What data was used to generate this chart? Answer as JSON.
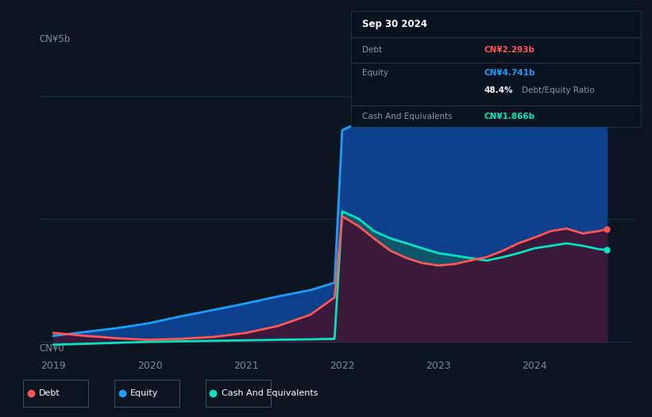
{
  "bg_color": "#0c1420",
  "plot_bg_color": "#0c1420",
  "grid_color": "#1e2d3d",
  "ylabel_text": "CN¥5b",
  "ylabel0_text": "CN¥0",
  "ylim": [
    -0.3,
    5.8
  ],
  "y_top": 5.0,
  "y_mid": 2.5,
  "y_bot": 0.0,
  "series": {
    "equity": {
      "label": "Equity",
      "color": "#1a9fff",
      "fill_color_rgba": [
        0.05,
        0.25,
        0.55,
        1.0
      ],
      "x": [
        2019.0,
        2019.33,
        2019.67,
        2020.0,
        2020.33,
        2020.67,
        2021.0,
        2021.33,
        2021.67,
        2021.92,
        2022.0,
        2022.17,
        2022.33,
        2022.5,
        2022.67,
        2022.83,
        2023.0,
        2023.17,
        2023.33,
        2023.5,
        2023.67,
        2023.83,
        2024.0,
        2024.17,
        2024.33,
        2024.5,
        2024.67,
        2024.75
      ],
      "y": [
        0.12,
        0.2,
        0.28,
        0.38,
        0.52,
        0.65,
        0.78,
        0.92,
        1.05,
        1.2,
        4.3,
        4.45,
        4.55,
        4.62,
        4.7,
        4.75,
        4.8,
        4.87,
        4.93,
        4.9,
        4.85,
        4.82,
        4.9,
        4.95,
        5.0,
        5.05,
        4.9,
        4.741
      ]
    },
    "cash": {
      "label": "Cash And Equivalents",
      "color": "#00e5c0",
      "fill_color_rgba": [
        0.05,
        0.35,
        0.4,
        0.85
      ],
      "x": [
        2019.0,
        2019.33,
        2019.67,
        2020.0,
        2020.33,
        2020.67,
        2021.0,
        2021.33,
        2021.67,
        2021.92,
        2022.0,
        2022.17,
        2022.33,
        2022.5,
        2022.67,
        2022.83,
        2023.0,
        2023.17,
        2023.33,
        2023.5,
        2023.67,
        2023.83,
        2024.0,
        2024.17,
        2024.33,
        2024.5,
        2024.67,
        2024.75
      ],
      "y": [
        -0.06,
        -0.04,
        -0.02,
        0.0,
        0.01,
        0.02,
        0.03,
        0.04,
        0.05,
        0.06,
        2.65,
        2.5,
        2.25,
        2.1,
        2.0,
        1.9,
        1.8,
        1.75,
        1.7,
        1.65,
        1.72,
        1.8,
        1.9,
        1.95,
        2.0,
        1.95,
        1.88,
        1.866
      ]
    },
    "debt": {
      "label": "Debt",
      "color": "#ff5555",
      "fill_color_rgba": [
        0.25,
        0.08,
        0.2,
        0.9
      ],
      "x": [
        2019.0,
        2019.33,
        2019.67,
        2020.0,
        2020.33,
        2020.67,
        2021.0,
        2021.33,
        2021.67,
        2021.92,
        2022.0,
        2022.17,
        2022.33,
        2022.5,
        2022.67,
        2022.83,
        2023.0,
        2023.17,
        2023.33,
        2023.5,
        2023.67,
        2023.83,
        2024.0,
        2024.17,
        2024.33,
        2024.5,
        2024.67,
        2024.75
      ],
      "y": [
        0.18,
        0.12,
        0.07,
        0.04,
        0.06,
        0.1,
        0.18,
        0.32,
        0.55,
        0.9,
        2.55,
        2.35,
        2.1,
        1.85,
        1.7,
        1.6,
        1.55,
        1.58,
        1.65,
        1.72,
        1.85,
        2.0,
        2.12,
        2.25,
        2.3,
        2.2,
        2.25,
        2.293
      ]
    }
  },
  "infobox": {
    "date": "Sep 30 2024",
    "debt_label": "Debt",
    "debt_value": "CN¥2.293b",
    "debt_color": "#ff5555",
    "equity_label": "Equity",
    "equity_value": "CN¥4.741b",
    "equity_color": "#1a9fff",
    "ratio_bold": "48.4%",
    "ratio_text": "Debt/Equity Ratio",
    "cash_label": "Cash And Equivalents",
    "cash_value": "CN¥1.866b",
    "cash_color": "#00e5c0"
  },
  "legend": [
    {
      "label": "Debt",
      "color": "#ff5555"
    },
    {
      "label": "Equity",
      "color": "#1a9fff"
    },
    {
      "label": "Cash And Equivalents",
      "color": "#00e5c0"
    }
  ],
  "xticks": [
    2019,
    2020,
    2021,
    2022,
    2023,
    2024
  ],
  "xlim": [
    2018.85,
    2025.05
  ]
}
